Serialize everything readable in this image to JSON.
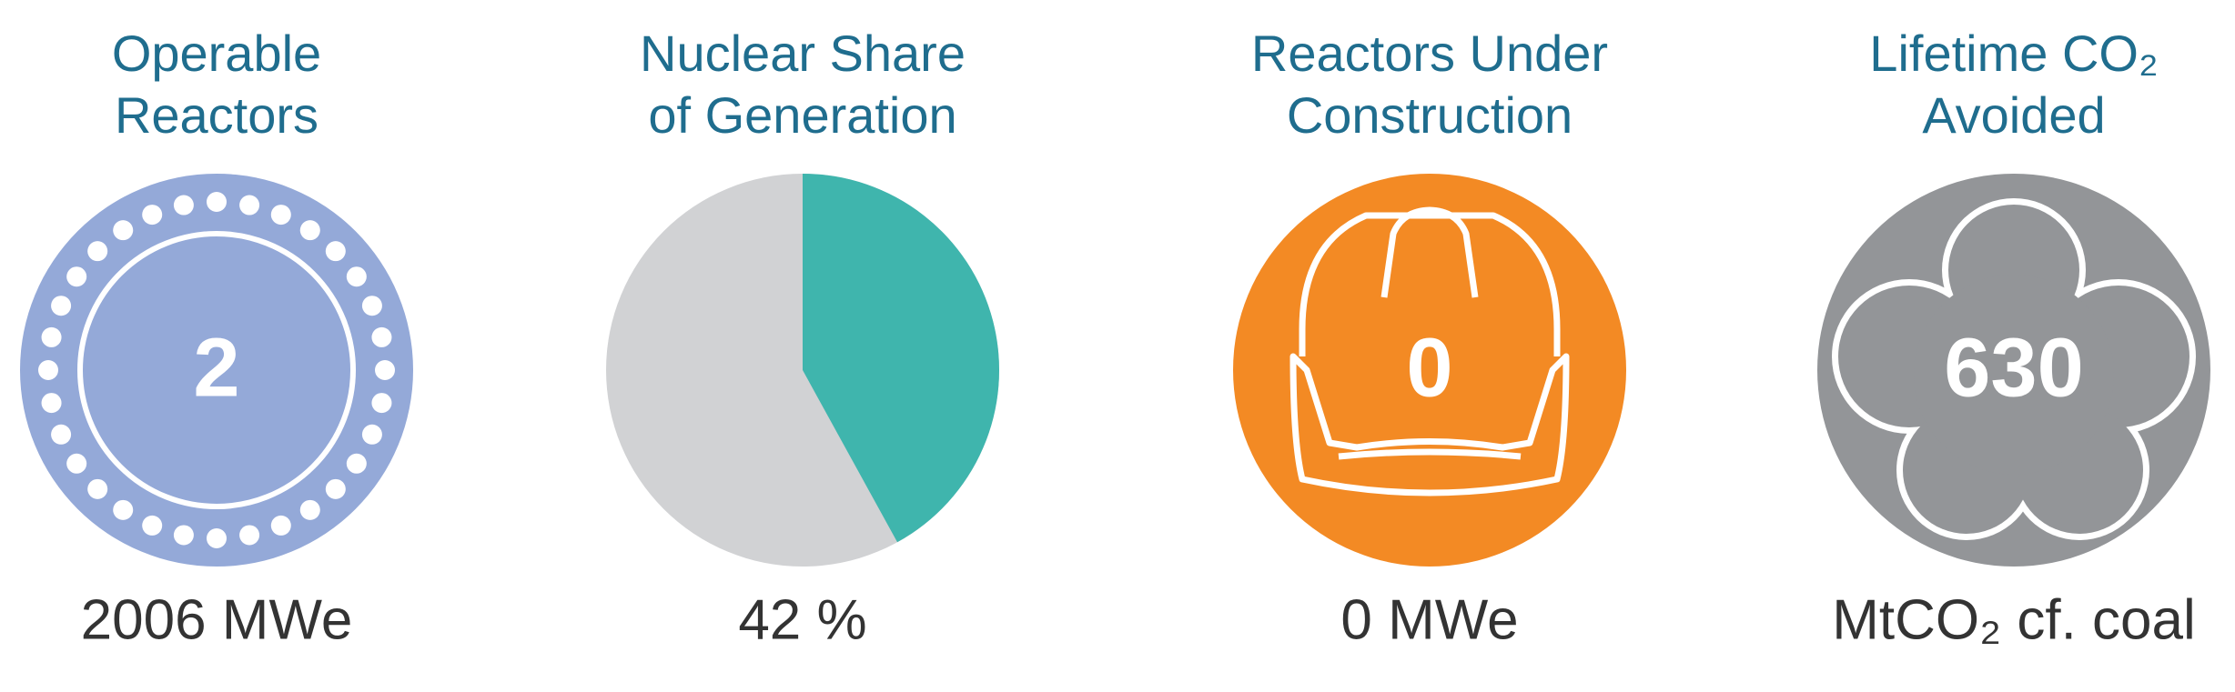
{
  "panels": [
    {
      "title_lines": [
        "Operable",
        "Reactors"
      ],
      "center": 2,
      "footer": "2006 MWe"
    },
    {
      "title_lines": [
        "Nuclear Share",
        "of Generation"
      ],
      "share": {
        "value": 42,
        "label": "42 %"
      }
    },
    {
      "title_lines": [
        "Reactors Under",
        "Construction"
      ],
      "center": 0,
      "footer": "0 MWe"
    },
    {
      "title_lines": [
        "Lifetime CO₂",
        "Avoided"
      ],
      "center": 630,
      "footer": "MtCO₂ cf. coal"
    }
  ]
}
